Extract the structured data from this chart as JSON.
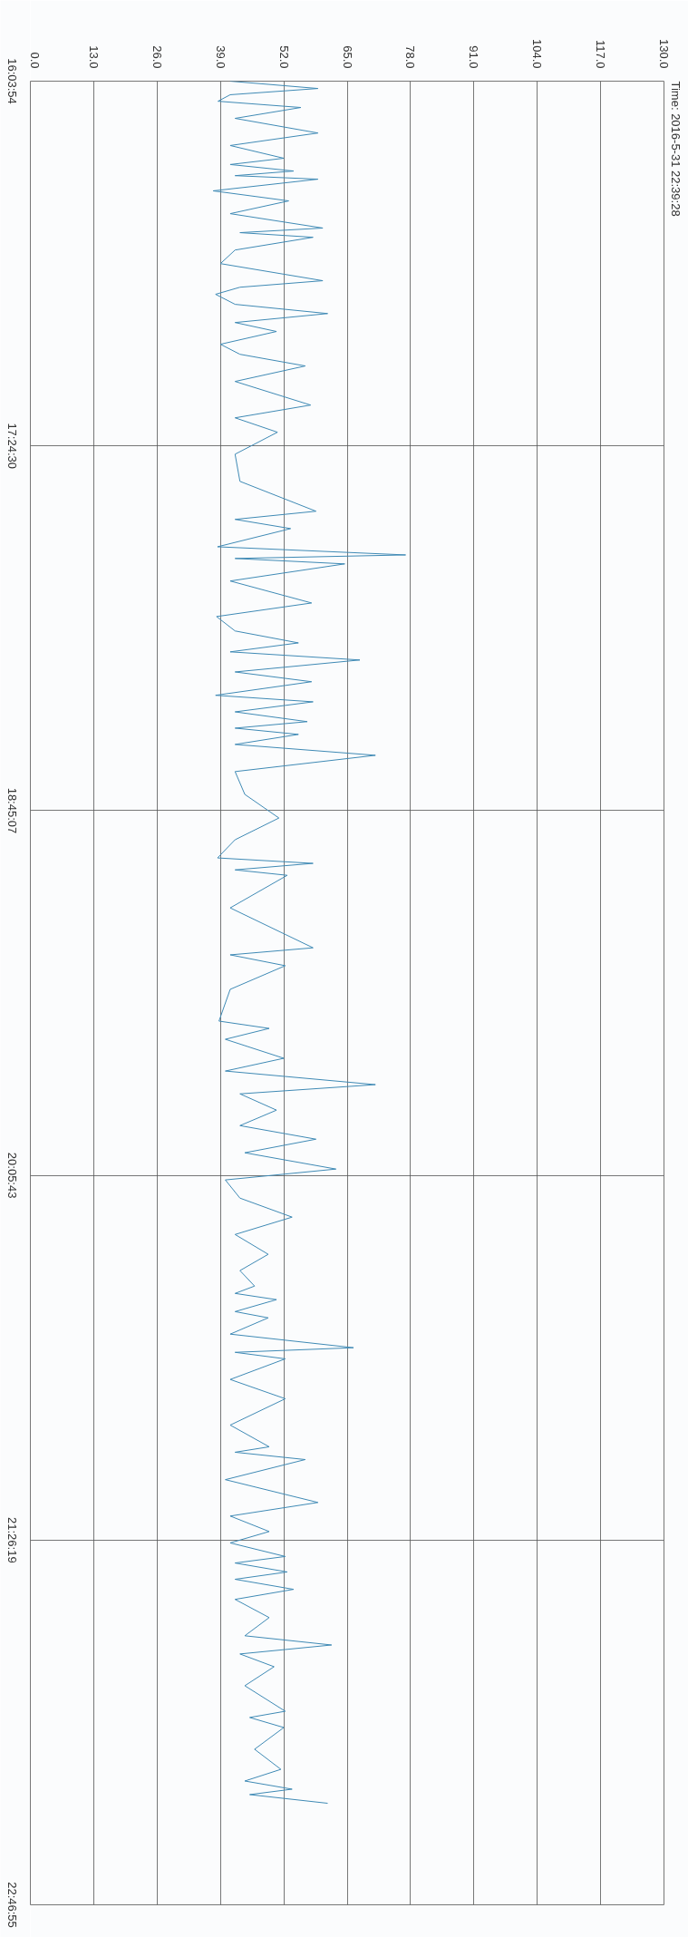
{
  "chart_data": {
    "type": "line",
    "orientation": "horizontal",
    "title": "Time: 2016-5-31 22:39:28",
    "xlim": [
      0,
      130
    ],
    "xticks": [
      {
        "value": 0,
        "label": "0.0"
      },
      {
        "value": 13,
        "label": "13.0"
      },
      {
        "value": 26,
        "label": "26.0"
      },
      {
        "value": 39,
        "label": "39.0"
      },
      {
        "value": 52,
        "label": "52.0"
      },
      {
        "value": 65,
        "label": "65.0"
      },
      {
        "value": 78,
        "label": "78.0"
      },
      {
        "value": 91,
        "label": "91.0"
      },
      {
        "value": 104,
        "label": "104.0"
      },
      {
        "value": 117,
        "label": "117.0"
      },
      {
        "value": 130,
        "label": "130.0"
      }
    ],
    "ylim": [
      22.781944,
      16.065
    ],
    "yticks": [
      {
        "value": 16.065,
        "label": "16:03:54"
      },
      {
        "value": 17.408333,
        "label": "17:24:30"
      },
      {
        "value": 18.751944,
        "label": "18:45:07"
      },
      {
        "value": 20.095278,
        "label": "20:05:43"
      },
      {
        "value": 21.438611,
        "label": "21:26:19"
      },
      {
        "value": 22.781944,
        "label": "22:46:55"
      }
    ],
    "grid": true,
    "series": [
      {
        "color": "#3f8ab5",
        "x": [
          16.065,
          16.092,
          16.115,
          16.139,
          16.162,
          16.202,
          16.256,
          16.302,
          16.349,
          16.372,
          16.396,
          16.413,
          16.426,
          16.469,
          16.506,
          16.553,
          16.606,
          16.623,
          16.64,
          16.687,
          16.737,
          16.8,
          16.824,
          16.85,
          16.887,
          16.921,
          16.954,
          16.987,
          17.034,
          17.071,
          17.114,
          17.171,
          17.258,
          17.305,
          17.358,
          17.439,
          17.539,
          17.649,
          17.679,
          17.713,
          17.78,
          17.81,
          17.823,
          17.843,
          17.906,
          17.987,
          18.037,
          18.09,
          18.134,
          18.167,
          18.197,
          18.241,
          18.277,
          18.327,
          18.351,
          18.388,
          18.424,
          18.448,
          18.471,
          18.508,
          18.548,
          18.608,
          18.692,
          18.779,
          18.859,
          18.926,
          18.946,
          18.97,
          18.99,
          19.11,
          19.257,
          19.283,
          19.323,
          19.41,
          19.527,
          19.554,
          19.594,
          19.664,
          19.711,
          19.761,
          19.795,
          19.855,
          19.912,
          19.962,
          20.012,
          20.072,
          20.112,
          20.179,
          20.249,
          20.313,
          20.386,
          20.446,
          20.503,
          20.53,
          20.553,
          20.597,
          20.62,
          20.68,
          20.73,
          20.747,
          20.771,
          20.847,
          20.918,
          21.015,
          21.095,
          21.115,
          21.142,
          21.216,
          21.3,
          21.35,
          21.407,
          21.449,
          21.499,
          21.523,
          21.556,
          21.583,
          21.62,
          21.657,
          21.724,
          21.791,
          21.825,
          21.858,
          21.905,
          21.975,
          22.069,
          22.092,
          22.129,
          22.209,
          22.283,
          22.326,
          22.356,
          22.376,
          22.408
        ],
        "values": [
          41,
          59,
          41,
          38.5,
          55.5,
          42,
          59,
          41,
          52,
          41,
          54,
          42,
          59,
          37.5,
          53,
          41,
          60,
          43,
          58,
          42,
          39,
          60,
          43,
          38,
          42,
          61,
          42,
          50.5,
          39,
          43,
          56.4,
          42,
          57.5,
          42,
          50.7,
          42,
          43,
          58.6,
          42,
          53.4,
          38.4,
          77,
          42,
          64.5,
          41,
          57.7,
          38.2,
          42,
          55,
          41,
          67.6,
          42,
          57.7,
          38,
          58,
          42,
          56.8,
          42,
          55,
          42,
          70.8,
          42,
          44,
          51,
          42,
          38.4,
          58,
          42,
          52.7,
          41,
          58,
          41,
          52.3,
          41,
          38.7,
          49,
          40,
          52,
          40,
          70.8,
          43,
          50.5,
          43,
          58.6,
          44,
          62.7,
          40,
          43,
          53.7,
          42,
          48.8,
          43,
          46,
          42,
          50.5,
          42,
          48.8,
          41,
          66.3,
          42,
          52.3,
          41,
          52.3,
          41,
          49,
          42,
          56.4,
          40,
          59,
          41,
          49,
          41,
          52.3,
          42,
          52.7,
          42,
          54,
          42,
          49,
          44,
          61.8,
          43,
          50,
          44,
          52.3,
          45,
          52,
          46,
          51.4,
          44,
          53.7,
          45,
          61
        ]
      }
    ]
  }
}
